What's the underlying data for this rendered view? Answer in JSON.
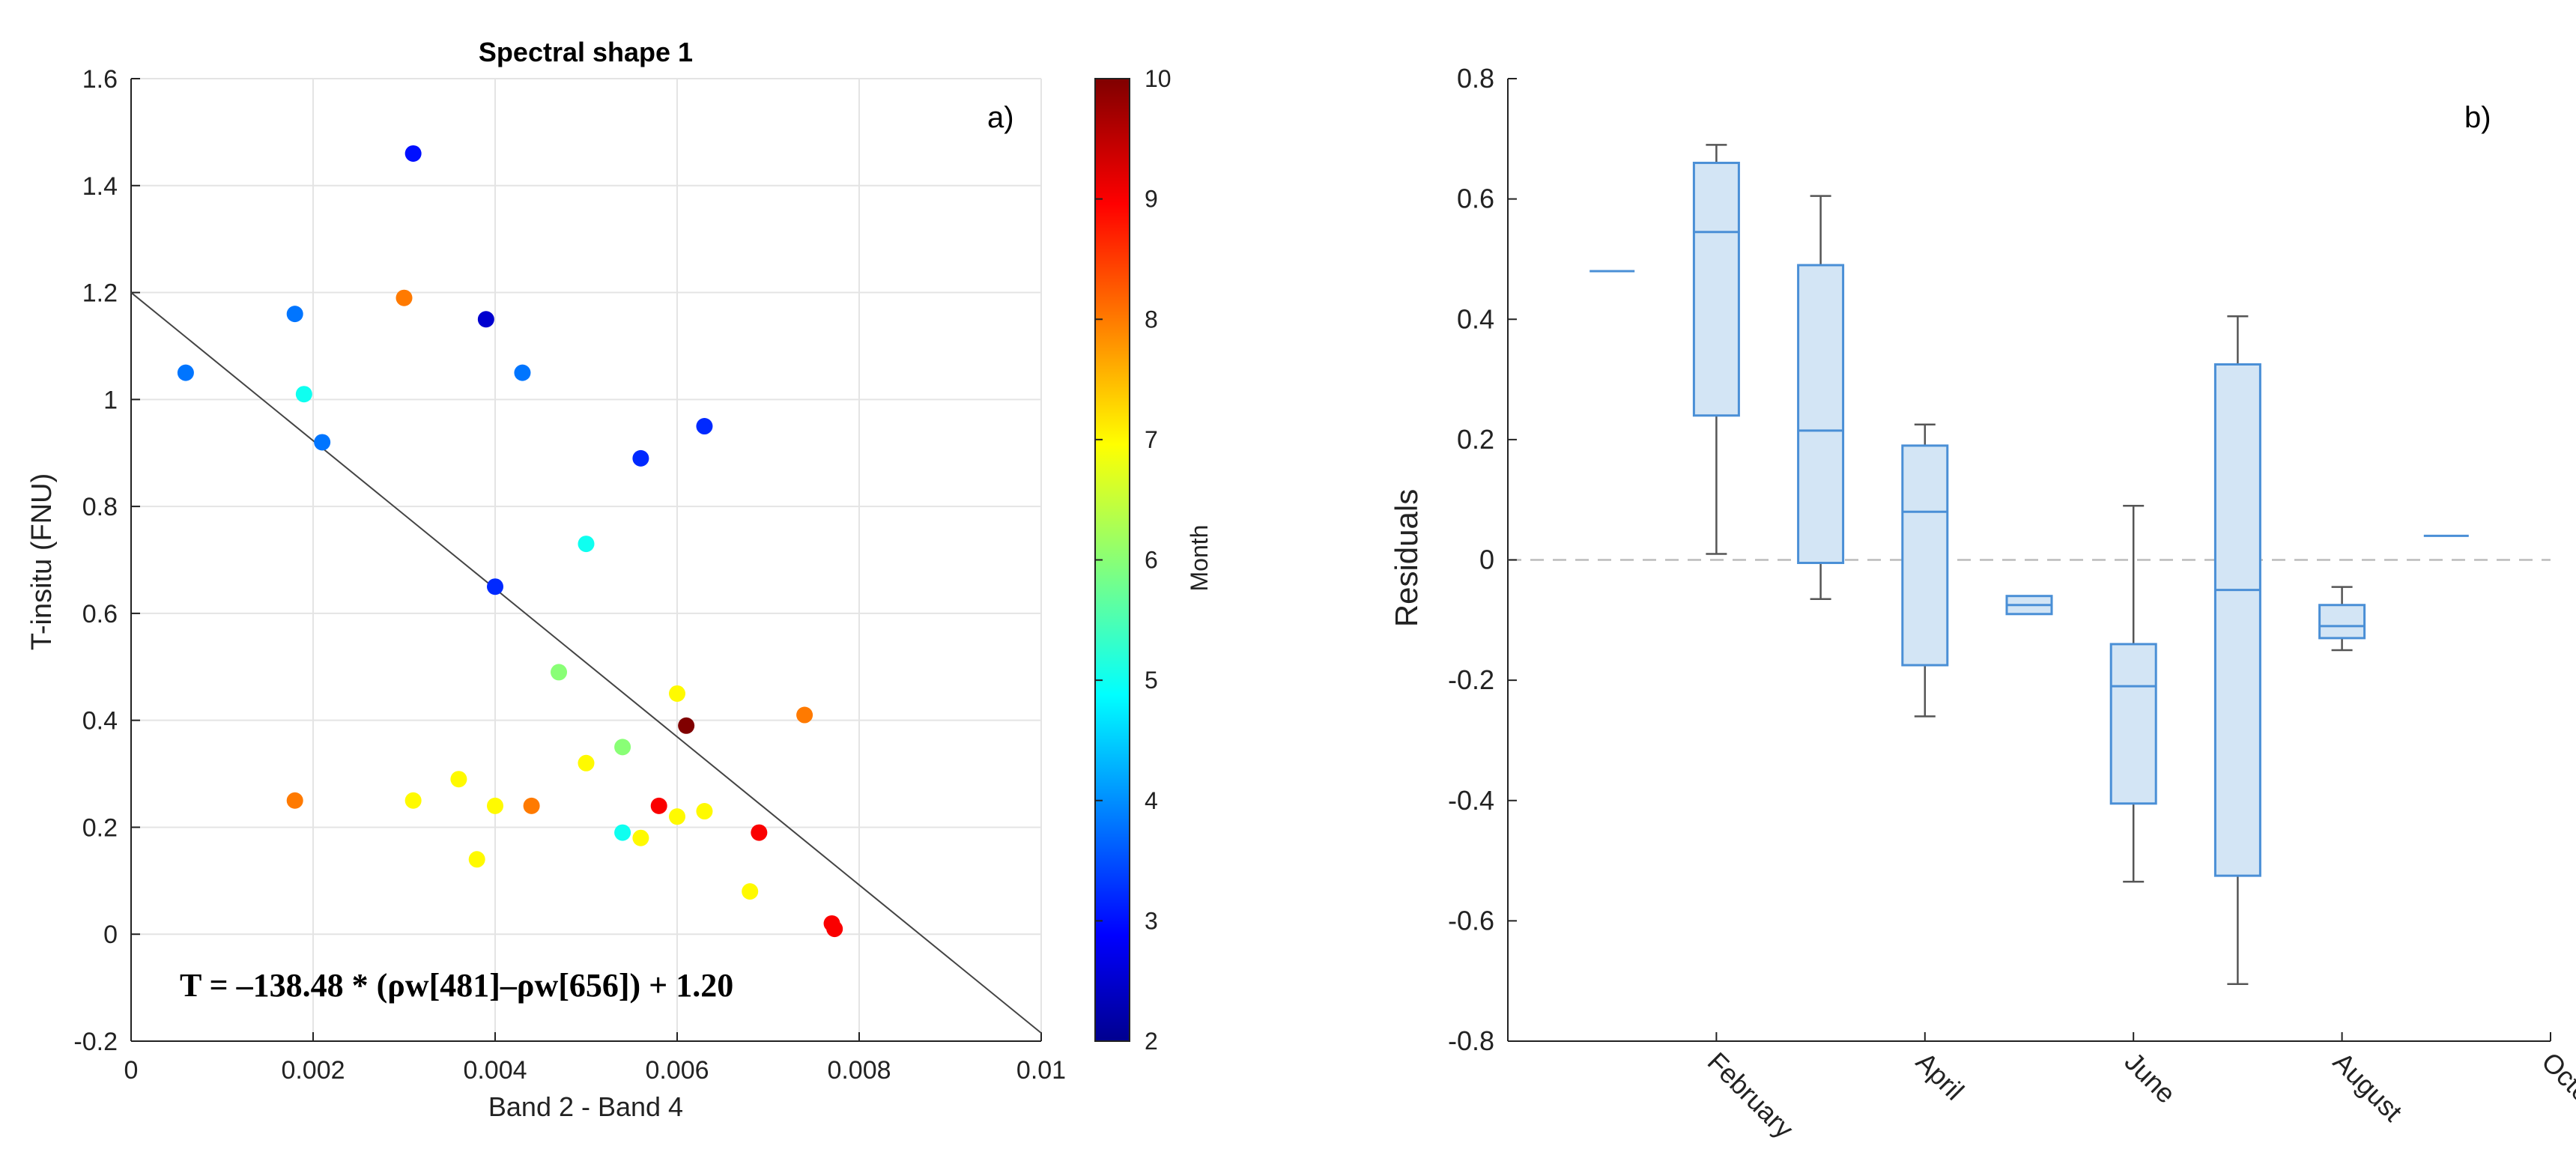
{
  "chart_data": [
    {
      "type": "scatter",
      "title": "Spectral shape 1",
      "panel_label": "a)",
      "xlabel": "Band 2 - Band 4",
      "ylabel": "T-insitu (FNU)",
      "xlim": [
        0,
        0.01
      ],
      "ylim": [
        -0.2,
        1.6
      ],
      "xticks": [
        0,
        0.002,
        0.004,
        0.006,
        0.008,
        0.01
      ],
      "xtick_labels": [
        "0",
        "0.002",
        "0.004",
        "0.006",
        "0.008",
        "0.01"
      ],
      "yticks": [
        -0.2,
        0,
        0.2,
        0.4,
        0.6,
        0.8,
        1,
        1.2,
        1.4,
        1.6
      ],
      "ytick_labels": [
        "-0.2",
        "0",
        "0.2",
        "0.4",
        "0.6",
        "0.8",
        "1",
        "1.2",
        "1.4",
        "1.6"
      ],
      "grid": true,
      "colorbar": {
        "label": "Month",
        "range": [
          2,
          10
        ],
        "ticks": [
          2,
          3,
          4,
          5,
          6,
          7,
          8,
          9,
          10
        ],
        "colormap": "jet"
      },
      "fit_line": {
        "slope": -138.48,
        "intercept": 1.2,
        "color": "#444444"
      },
      "annotation": "T = –138.48 * (ρw[481]–ρw[656]) + 1.20",
      "points": [
        {
          "x": 0.0006,
          "y": 1.05,
          "month": 3.8
        },
        {
          "x": 0.0018,
          "y": 1.16,
          "month": 3.8
        },
        {
          "x": 0.0019,
          "y": 1.01,
          "month": 5.0
        },
        {
          "x": 0.0021,
          "y": 0.92,
          "month": 3.8
        },
        {
          "x": 0.003,
          "y": 1.19,
          "month": 8.0
        },
        {
          "x": 0.0031,
          "y": 1.46,
          "month": 3.0
        },
        {
          "x": 0.0039,
          "y": 1.15,
          "month": 2.5
        },
        {
          "x": 0.0043,
          "y": 1.05,
          "month": 3.8
        },
        {
          "x": 0.0056,
          "y": 0.89,
          "month": 3.2
        },
        {
          "x": 0.0063,
          "y": 0.95,
          "month": 3.2
        },
        {
          "x": 0.004,
          "y": 0.65,
          "month": 3.2
        },
        {
          "x": 0.005,
          "y": 0.73,
          "month": 5.0
        },
        {
          "x": 0.0047,
          "y": 0.49,
          "month": 6.0
        },
        {
          "x": 0.006,
          "y": 0.45,
          "month": 7.0
        },
        {
          "x": 0.0061,
          "y": 0.39,
          "month": 10.0
        },
        {
          "x": 0.0074,
          "y": 0.41,
          "month": 8.0
        },
        {
          "x": 0.0018,
          "y": 0.25,
          "month": 8.0
        },
        {
          "x": 0.0031,
          "y": 0.25,
          "month": 7.0
        },
        {
          "x": 0.0036,
          "y": 0.29,
          "month": 7.0
        },
        {
          "x": 0.0038,
          "y": 0.14,
          "month": 7.0
        },
        {
          "x": 0.004,
          "y": 0.24,
          "month": 7.0
        },
        {
          "x": 0.0044,
          "y": 0.24,
          "month": 8.0
        },
        {
          "x": 0.005,
          "y": 0.32,
          "month": 7.0
        },
        {
          "x": 0.0054,
          "y": 0.35,
          "month": 6.0
        },
        {
          "x": 0.0054,
          "y": 0.19,
          "month": 5.0
        },
        {
          "x": 0.0056,
          "y": 0.18,
          "month": 7.0
        },
        {
          "x": 0.0058,
          "y": 0.24,
          "month": 9.0
        },
        {
          "x": 0.006,
          "y": 0.22,
          "month": 7.0
        },
        {
          "x": 0.0063,
          "y": 0.23,
          "month": 7.0
        },
        {
          "x": 0.0069,
          "y": 0.19,
          "month": 9.0
        },
        {
          "x": 0.0068,
          "y": 0.08,
          "month": 7.0
        },
        {
          "x": 0.0077,
          "y": 0.02,
          "month": 9.0
        },
        {
          "x": 0.00773,
          "y": 0.01,
          "month": 9.0
        }
      ]
    },
    {
      "type": "box",
      "panel_label": "b)",
      "xlabel": "",
      "ylabel": "Residuals",
      "ylim": [
        -0.8,
        0.8
      ],
      "yticks": [
        -0.8,
        -0.6,
        -0.4,
        -0.2,
        0,
        0.2,
        0.4,
        0.6,
        0.8
      ],
      "ytick_labels": [
        "-0.8",
        "-0.6",
        "-0.4",
        "-0.2",
        "0",
        "0.2",
        "0.4",
        "0.6",
        "0.8"
      ],
      "x_range": [
        1,
        11
      ],
      "xticks": [
        3,
        5,
        7,
        9,
        11
      ],
      "xtick_labels": [
        "February",
        "April",
        "June",
        "August",
        "October"
      ],
      "zero_line": {
        "value": 0,
        "style": "dashed",
        "color": "#bbbbbb"
      },
      "box_color": "#4a8fd6",
      "box_fill": "#d3e5f5",
      "whisker_color": "#555555",
      "boxes": [
        {
          "month": 2,
          "min": 0.48,
          "q1": 0.48,
          "median": 0.48,
          "q3": 0.48,
          "max": 0.48
        },
        {
          "month": 3,
          "min": 0.01,
          "q1": 0.24,
          "median": 0.545,
          "q3": 0.66,
          "max": 0.69
        },
        {
          "month": 4,
          "min": -0.065,
          "q1": -0.005,
          "median": 0.215,
          "q3": 0.49,
          "max": 0.605
        },
        {
          "month": 5,
          "min": -0.26,
          "q1": -0.175,
          "median": 0.08,
          "q3": 0.19,
          "max": 0.225
        },
        {
          "month": 6,
          "min": -0.09,
          "q1": -0.09,
          "median": -0.075,
          "q3": -0.06,
          "max": -0.06
        },
        {
          "month": 7,
          "min": -0.535,
          "q1": -0.405,
          "median": -0.21,
          "q3": -0.14,
          "max": 0.09
        },
        {
          "month": 8,
          "min": -0.705,
          "q1": -0.525,
          "median": -0.05,
          "q3": 0.325,
          "max": 0.405
        },
        {
          "month": 9,
          "min": -0.15,
          "q1": -0.13,
          "median": -0.11,
          "q3": -0.075,
          "max": -0.045
        },
        {
          "month": 10,
          "min": 0.04,
          "q1": 0.04,
          "median": 0.04,
          "q3": 0.04,
          "max": 0.04
        }
      ]
    }
  ]
}
